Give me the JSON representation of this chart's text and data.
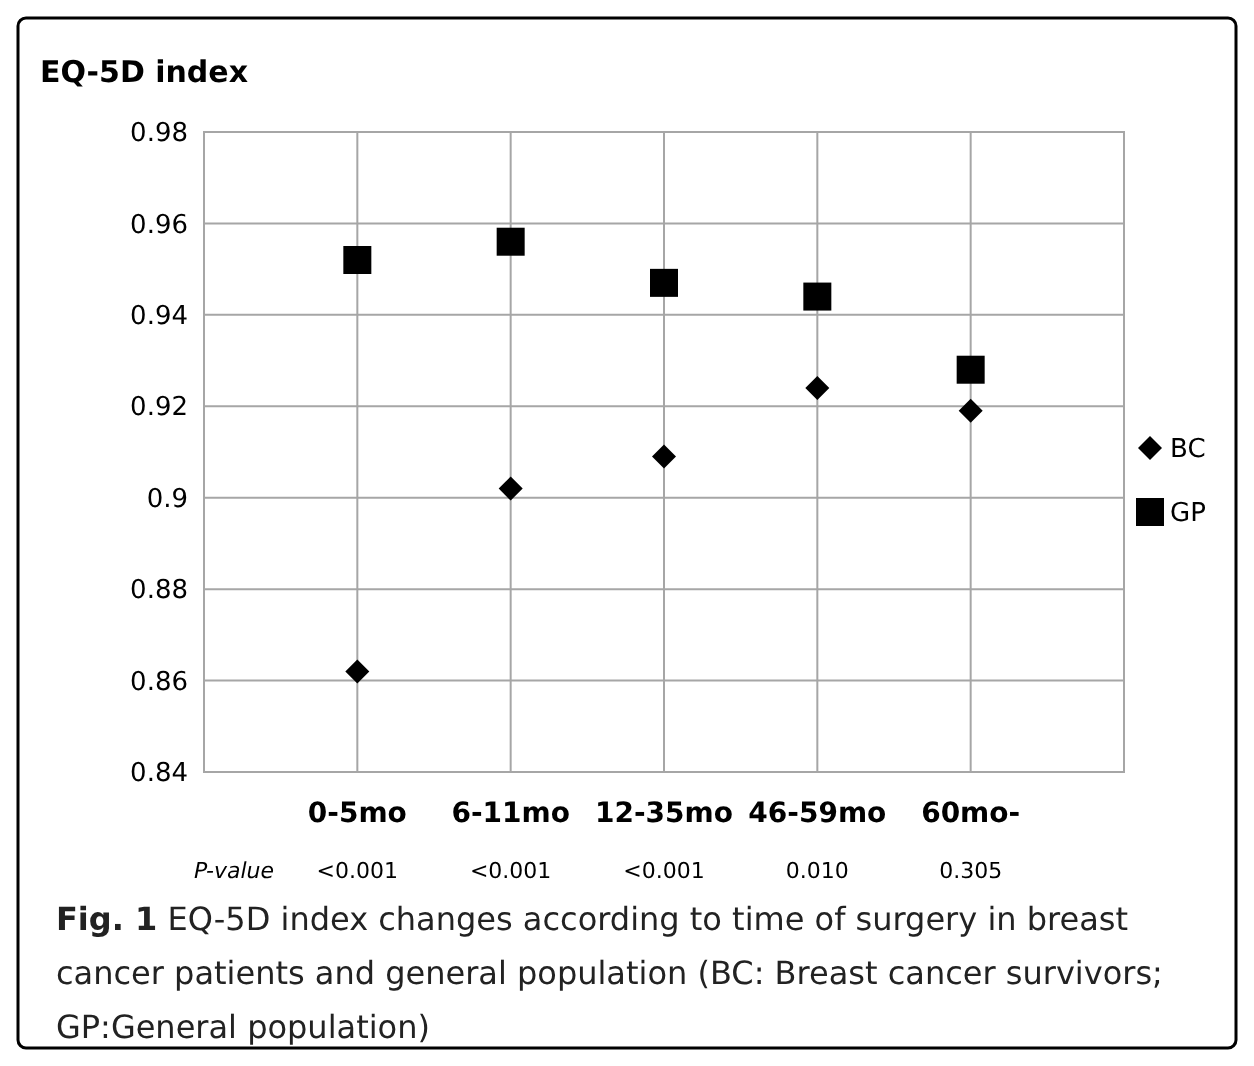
{
  "chart_data": {
    "type": "scatter",
    "title": "EQ-5D index",
    "categories": [
      null,
      "0-5mo",
      "6-11mo",
      "12-35mo",
      "46-59mo",
      "60mo-",
      null
    ],
    "series": [
      {
        "name": "BC",
        "color": "#000000",
        "marker": "diamond",
        "values": [
          null,
          0.862,
          0.902,
          0.909,
          0.924,
          0.919,
          null
        ]
      },
      {
        "name": "GP",
        "color": "#000000",
        "marker": "square",
        "values": [
          null,
          0.952,
          0.956,
          0.947,
          0.944,
          0.928,
          null
        ]
      }
    ],
    "ylim": [
      0.84,
      0.98
    ],
    "yticks": [
      0.84,
      0.86,
      0.88,
      0.9,
      0.92,
      0.94,
      0.96,
      0.98
    ],
    "grid": true,
    "legend": "right",
    "annotations": [
      "P-value",
      "<0.001",
      "<0.001",
      "<0.001",
      "0.010",
      "0.305",
      "Fig. 1",
      "EQ-5D index changes according to time of surgery in breast cancer patients and general population (BC: Breast cancer survivors; GP:General population)"
    ]
  }
}
